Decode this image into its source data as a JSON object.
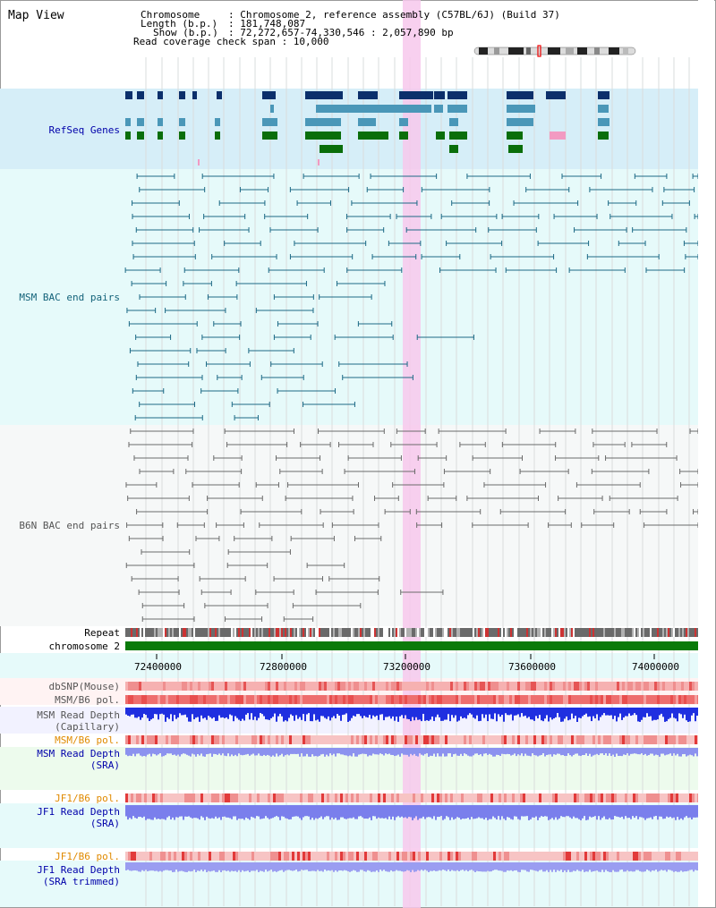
{
  "page": {
    "title": "Map View"
  },
  "info": {
    "chromosome_key": "Chromosome",
    "chromosome_val": ": Chromosome 2, reference assembly (C57BL/6J) (Build 37)",
    "length_key": "Length (b.p.)",
    "length_val": ": 181,748,087",
    "show_key": "Show (b.p.)",
    "show_val": ": 72,272,657-74,330,546 : 2,057,890 bp",
    "coverage": "Read coverage check span : 10,000"
  },
  "tracks": {
    "refseq": "RefSeq Genes",
    "msm_bac": "MSM BAC end pairs",
    "b6n_bac": "B6N BAC end pairs",
    "repeat": "Repeat",
    "chromosome": "chromosome 2",
    "dbsnp": "dbSNP(Mouse)",
    "msm_b6_pol_1": "MSM/B6 pol.",
    "msm_depth_cap": "MSM Read Depth\n(Capillary)",
    "msm_b6_pol_2": "MSM/B6 pol.",
    "msm_depth_sra": "MSM Read Depth\n(SRA)",
    "jf1_b6_pol_1": "JF1/B6 pol.",
    "jf1_depth_sra": "JF1 Read Depth\n(SRA)",
    "jf1_b6_pol_2": "JF1/B6 pol.",
    "jf1_depth_trim": "JF1 Read Depth\n(SRA trimmed)"
  },
  "ruler": {
    "ticks": [
      "72400000",
      "72800000",
      "73200000",
      "73600000",
      "74000000"
    ]
  },
  "colors": {
    "refseq_bg": "#d6eef8",
    "bac_bg": "#e6fafa",
    "highlight": "#f7c8ec",
    "navy": "#0c2f6b",
    "steel": "#4a97b8",
    "green": "#0a6e0a",
    "teal_line": "#1d6a86",
    "gray_line": "#6b6b6b",
    "blue_label": "#0000aa",
    "teal_label": "#14637a",
    "orange_label": "#e08a00"
  }
}
